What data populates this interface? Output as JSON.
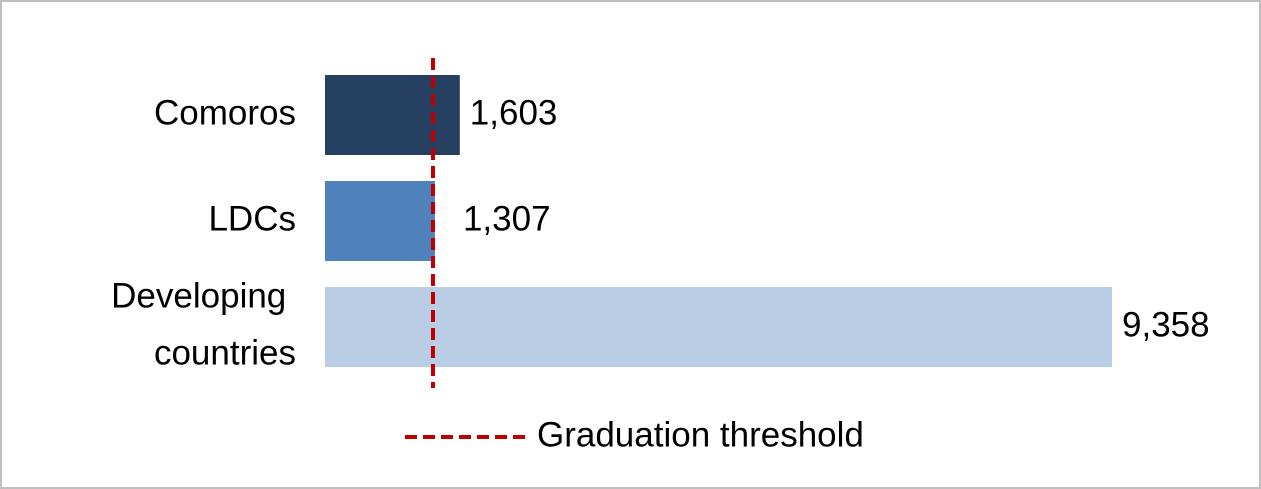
{
  "chart_data": {
    "type": "bar",
    "orientation": "horizontal",
    "categories": [
      "Comoros",
      "LDCs",
      "Developing countries"
    ],
    "values": [
      1603,
      1307,
      9358
    ],
    "value_labels": [
      "1,603",
      "1,307",
      "9,358"
    ],
    "colors": [
      "#243f60",
      "#4f81bd",
      "#b9cde5"
    ],
    "threshold": {
      "label": "Graduation threshold",
      "value": 1284,
      "color": "#c00000"
    }
  }
}
